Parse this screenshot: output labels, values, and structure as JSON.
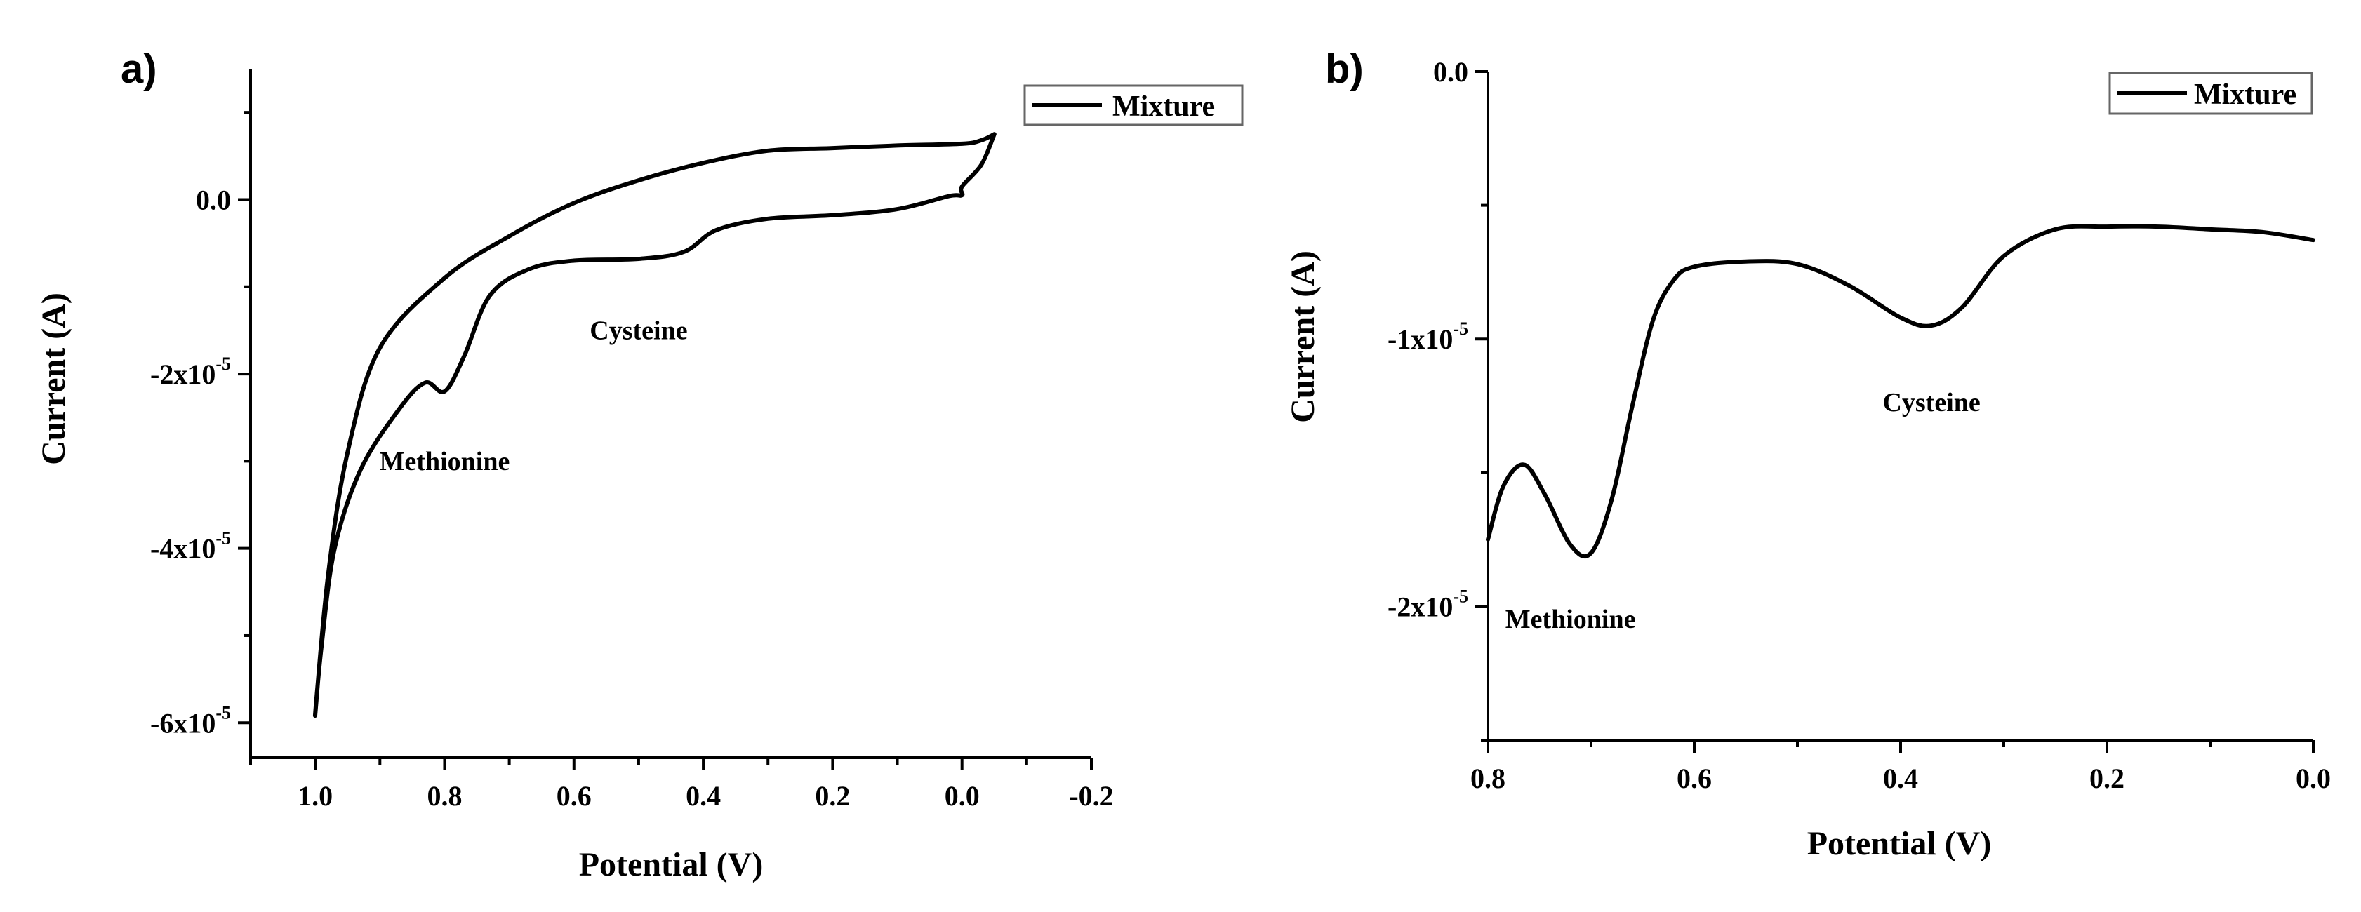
{
  "chart_data": [
    {
      "panel": "a)",
      "type": "line",
      "title": "",
      "xlabel": "Potential (V)",
      "ylabel": "Current (A)",
      "xlim": [
        1.1,
        -0.2
      ],
      "ylim": [
        -6.4e-05,
        1.5e-05
      ],
      "xticks": [
        1.0,
        0.8,
        0.6,
        0.4,
        0.2,
        0.0,
        -0.2
      ],
      "xtick_labels": [
        "1.0",
        "0.8",
        "0.6",
        "0.4",
        "0.2",
        "0.0",
        "-0.2"
      ],
      "yticks": [
        0.0,
        -2e-05,
        -4e-05,
        -6e-05
      ],
      "ytick_labels": [
        {
          "mant": "0.0",
          "exp": ""
        },
        {
          "mant": "-2x10",
          "exp": "-5"
        },
        {
          "mant": "-4x10",
          "exp": "-5"
        },
        {
          "mant": "-6x10",
          "exp": "-5"
        }
      ],
      "legend": {
        "label": "Mixture",
        "position": "top-right"
      },
      "annotations": [
        {
          "text": "Cysteine",
          "x": 0.5,
          "y": -1.6e-05
        },
        {
          "text": "Methionine",
          "x": 0.8,
          "y": -3.1e-05
        }
      ],
      "series": [
        {
          "name": "Mixture",
          "x": [
            -0.05,
            -0.03,
            0.0,
            0.1,
            0.2,
            0.3,
            0.4,
            0.5,
            0.6,
            0.7,
            0.8,
            0.9,
            0.95,
            0.98,
            1.0,
            0.99,
            0.97,
            0.93,
            0.87,
            0.83,
            0.8,
            0.77,
            0.73,
            0.67,
            0.6,
            0.5,
            0.43,
            0.38,
            0.3,
            0.2,
            0.1,
            0.02,
            0.0,
            0.0,
            -0.03,
            -0.05
          ],
          "y": [
            7.5e-06,
            6.8e-06,
            6.4e-06,
            6.2e-06,
            5.9e-06,
            5.6e-06,
            4.2e-06,
            2.2e-06,
            -4e-07,
            -4.2e-06,
            -9e-06,
            -1.7e-05,
            -2.9e-05,
            -4.3e-05,
            -5.9e-05,
            -5.1e-05,
            -4e-05,
            -3.1e-05,
            -2.4e-05,
            -2.1e-05,
            -2.2e-05,
            -1.8e-05,
            -1.1e-05,
            -8e-06,
            -7e-06,
            -6.8e-06,
            -6e-06,
            -3.5e-06,
            -2.2e-06,
            -1.8e-06,
            -1.1e-06,
            4e-07,
            5e-07,
            1.5e-06,
            4e-06,
            7.5e-06
          ]
        }
      ]
    },
    {
      "panel": "b)",
      "type": "line",
      "title": "",
      "xlabel": "Potential (V)",
      "ylabel": "Current (A)",
      "xlim": [
        0.8,
        0.0
      ],
      "ylim": [
        -2.5e-05,
        0.0
      ],
      "xticks": [
        0.8,
        0.6,
        0.4,
        0.2,
        0.0
      ],
      "xtick_labels": [
        "0.8",
        "0.6",
        "0.4",
        "0.2",
        "0.0"
      ],
      "yticks": [
        0.0,
        -1e-05,
        -2e-05
      ],
      "ytick_labels": [
        {
          "mant": "0.0",
          "exp": ""
        },
        {
          "mant": "-1x10",
          "exp": "-5"
        },
        {
          "mant": "-2x10",
          "exp": "-5"
        }
      ],
      "legend": {
        "label": "Mixture",
        "position": "top-right"
      },
      "annotations": [
        {
          "text": "Cysteine",
          "x": 0.37,
          "y": -1.27e-05
        },
        {
          "text": "Methionine",
          "x": 0.72,
          "y": -2.08e-05
        }
      ],
      "series": [
        {
          "name": "Mixture",
          "x": [
            0.8,
            0.785,
            0.765,
            0.745,
            0.72,
            0.7,
            0.68,
            0.66,
            0.64,
            0.62,
            0.6,
            0.55,
            0.5,
            0.45,
            0.4,
            0.37,
            0.34,
            0.3,
            0.25,
            0.2,
            0.15,
            0.1,
            0.05,
            0.0
          ],
          "y": [
            -1.75e-05,
            -1.55e-05,
            -1.47e-05,
            -1.58e-05,
            -1.77e-05,
            -1.8e-05,
            -1.6e-05,
            -1.25e-05,
            -9.3e-06,
            -7.8e-06,
            -7.3e-06,
            -7.1e-06,
            -7.2e-06,
            -8e-06,
            -9.2e-06,
            -9.5e-06,
            -8.8e-06,
            -6.9e-06,
            -5.9e-06,
            -5.8e-06,
            -5.8e-06,
            -5.9e-06,
            -6e-06,
            -6.3e-06
          ]
        }
      ]
    }
  ]
}
